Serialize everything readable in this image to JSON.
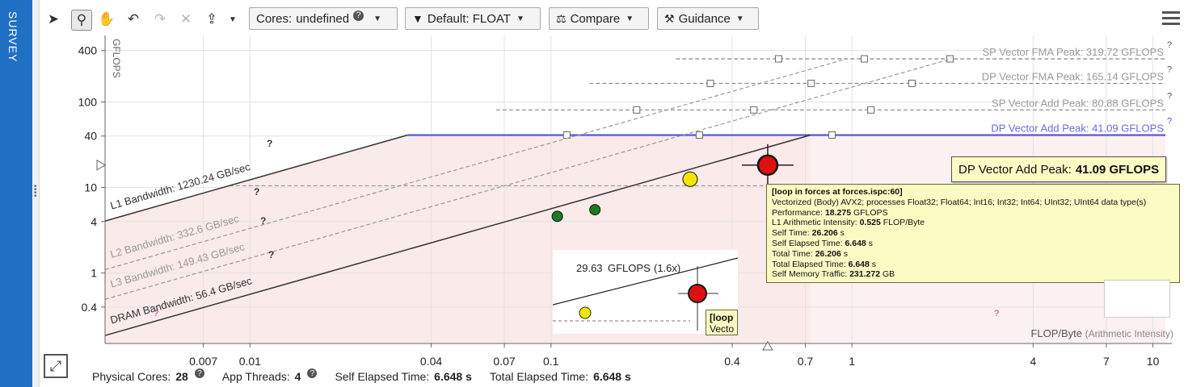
{
  "sidebar": {
    "survey_label": "SURVEY"
  },
  "toolbar": {
    "cores_label": "Cores:",
    "cores_value": "undefined",
    "default_label": "Default: FLOAT",
    "compare_label": "Compare",
    "guidance_label": "Guidance"
  },
  "chart_data": {
    "type": "scatter",
    "x_scale": "log",
    "y_scale": "log",
    "xlim": [
      0.0033,
      11
    ],
    "ylim": [
      0.15,
      600
    ],
    "grid": true,
    "ylabel": "GFLOPS",
    "xlabel": "FLOP/Byte",
    "xlabel_suffix": "(Arithmetic Intensity)",
    "x_ticks": [
      0.007,
      0.01,
      0.04,
      0.07,
      0.1,
      0.4,
      0.7,
      1,
      4,
      7,
      10
    ],
    "x_tick_labels": [
      "0.007",
      "0.01",
      "0.04",
      "0.07",
      "0.1",
      "0.4",
      "0.7",
      "1",
      "4",
      "7",
      "10"
    ],
    "y_ticks": [
      0.4,
      1,
      4,
      10,
      40,
      100,
      400
    ],
    "y_tick_labels": [
      "0.4",
      "1",
      "4",
      "10",
      "40",
      "100",
      "400"
    ],
    "roofs": [
      {
        "label": "SP Vector FMA Peak: 319.72 GFLOPS",
        "value": 319.72,
        "color": "#9a9a9a"
      },
      {
        "label": "DP Vector FMA Peak: 165.14 GFLOPS",
        "value": 165.14,
        "color": "#9a9a9a"
      },
      {
        "label": "SP Vector Add Peak: 80.88 GFLOPS",
        "value": 80.88,
        "color": "#9a9a9a"
      },
      {
        "label": "DP Vector Add Peak: 41.09 GFLOPS",
        "value": 41.09,
        "color": "#6a6ae0",
        "highlight": true
      }
    ],
    "scalar_roof_value": 10.5,
    "bandwidths": [
      {
        "label": "L1 Bandwidth: 1230.24 GB/sec",
        "value": 1230.24,
        "color": "#333333"
      },
      {
        "label": "L2 Bandwidth: 332.6 GB/sec",
        "value": 332.6,
        "color": "#9a9a9a"
      },
      {
        "label": "L3 Bandwidth: 149.43 GB/sec",
        "value": 149.43,
        "color": "#9a9a9a"
      },
      {
        "label": "DRAM Bandwidth: 56.4 GB/sec",
        "value": 56.4,
        "color": "#333333"
      }
    ],
    "points": [
      {
        "name": "loop in forces at forces.ispc:60",
        "x": 0.525,
        "y": 18.275,
        "color": "#e01010",
        "size": "large",
        "selected": true
      },
      {
        "name": "",
        "x": 0.29,
        "y": 12.5,
        "color": "#f2e600",
        "size": "medium"
      },
      {
        "name": "",
        "x": 0.105,
        "y": 4.6,
        "color": "#1f7a1f",
        "size": "small"
      },
      {
        "name": "",
        "x": 0.14,
        "y": 5.5,
        "color": "#1f7a1f",
        "size": "small"
      }
    ],
    "markers_x": 0.525
  },
  "peak_tooltip": {
    "label": "DP Vector Add Peak:",
    "value": "41.09 GFLOPS"
  },
  "tooltip": {
    "title": "[loop in forces at forces.ispc:60]",
    "line1": "Vectorized (Body) AVX2; processes Float32; Float64; Int16; Int32; Int64; UInt32; UInt64 data type(s)",
    "performance_label": "Performance:",
    "performance_value": "18.275",
    "performance_unit": "GFLOPS",
    "ai_label": "L1 Arithmetic Intensity:",
    "ai_value": "0.525",
    "ai_unit": "FLOP/Byte",
    "self_time_label": "Self Time:",
    "self_time_value": "26.206",
    "self_time_unit": "s",
    "self_elapsed_label": "Self Elapsed Time:",
    "self_elapsed_value": "6.648",
    "self_elapsed_unit": "s",
    "total_time_label": "Total Time:",
    "total_time_value": "26.206",
    "total_time_unit": "s",
    "total_elapsed_label": "Total Elapsed Time:",
    "total_elapsed_value": "6.648",
    "total_elapsed_unit": "s",
    "traffic_label": "Self Memory Traffic:",
    "traffic_value": "231.272",
    "traffic_unit": "GB"
  },
  "inset": {
    "gflops_value": "29.63",
    "gflops_unit": "GFLOPS",
    "gflops_ratio": "(1.6x)",
    "tip_line1": "[loop",
    "tip_line2": "Vecto"
  },
  "status": {
    "physical_cores_label": "Physical Cores:",
    "physical_cores_value": "28",
    "app_threads_label": "App Threads:",
    "app_threads_value": "4",
    "self_elapsed_label": "Self Elapsed Time:",
    "self_elapsed_value": "6.648 s",
    "total_elapsed_label": "Total Elapsed Time:",
    "total_elapsed_value": "6.648 s"
  },
  "icons": {
    "select": "cursor-icon",
    "zoom": "zoom-icon",
    "pan": "pan-icon",
    "undo": "undo-icon",
    "redo": "redo-icon",
    "reset": "close-icon",
    "export": "export-icon",
    "filter": "filter-icon",
    "compare": "compare-icon",
    "guidance": "guidance-icon",
    "menu": "menu-icon",
    "expand": "expand-icon"
  }
}
